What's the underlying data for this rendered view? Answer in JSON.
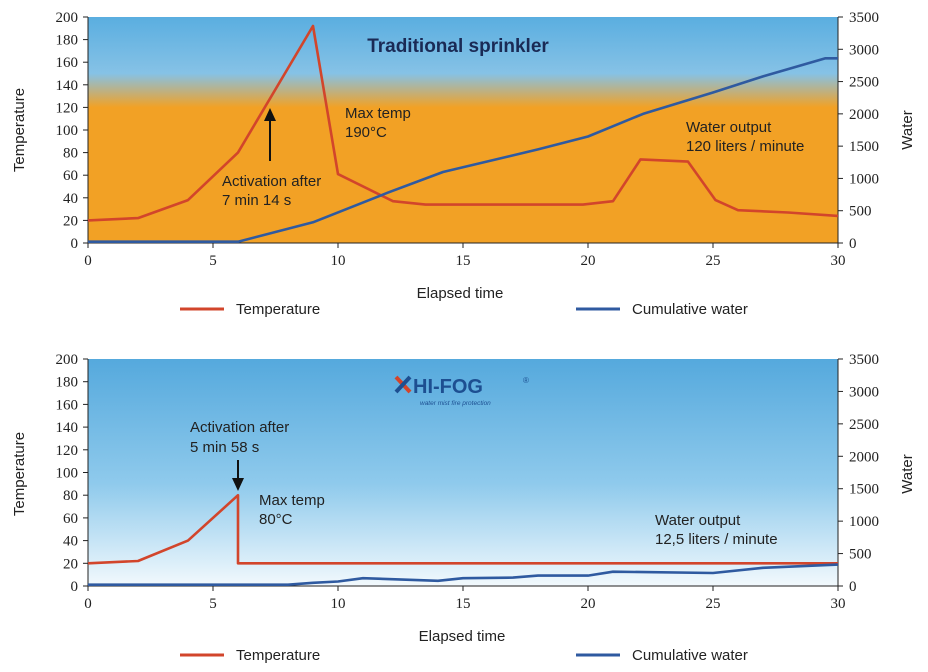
{
  "colors": {
    "temperature_line": "#d2452b",
    "water_line": "#2f5aa0",
    "sky_top": "#5aaee0",
    "sky_mid": "#7cc0e8",
    "orange": "#f2a125",
    "pale": "#eef7fc",
    "logo_red": "#d2452b",
    "logo_blue": "#1d4f91"
  },
  "chart_data": [
    {
      "type": "line",
      "title": "Traditional sprinkler",
      "xlabel": "Elapsed time",
      "ylabel": "Temperature",
      "y2label": "Water",
      "xlim": [
        0,
        30
      ],
      "ylim": [
        0,
        200
      ],
      "y2lim": [
        0,
        3500
      ],
      "x_ticks": [
        "0",
        "5",
        "10",
        "15",
        "20",
        "25",
        "30"
      ],
      "y_ticks": [
        "0",
        "20",
        "40",
        "60",
        "80",
        "100",
        "120",
        "140",
        "160",
        "180",
        "200"
      ],
      "y2_ticks": [
        "0",
        "500",
        "1000",
        "1500",
        "2000",
        "2500",
        "3000",
        "3500"
      ],
      "series": [
        {
          "name": "Temperature",
          "axis": "left",
          "x": [
            0,
            2,
            4,
            6,
            9,
            10,
            12.2,
            13.5,
            19.8,
            21,
            22.1,
            24,
            25.1,
            26,
            28,
            30
          ],
          "values": [
            20,
            22,
            38,
            80,
            192,
            61,
            37,
            34,
            34,
            37,
            74,
            72,
            38,
            29,
            27,
            24
          ]
        },
        {
          "name": "Cumulative water",
          "axis": "right",
          "x": [
            0,
            6,
            9,
            12,
            14.2,
            18,
            20,
            22.2,
            25,
            27,
            29.5,
            30
          ],
          "values": [
            20,
            20,
            320,
            780,
            1100,
            1450,
            1650,
            2000,
            2330,
            2580,
            2860,
            2860
          ]
        }
      ],
      "annotations": [
        {
          "text": [
            "Max temp",
            "190°C"
          ]
        },
        {
          "text": [
            "Activation after",
            "7 min 14 s"
          ]
        },
        {
          "text": [
            "Water output",
            "120 liters / minute"
          ]
        }
      ]
    },
    {
      "type": "line",
      "title": "",
      "logo_text": "HI-FOG",
      "logo_tagline": "water mist fire protection",
      "xlabel": "Elapsed time",
      "ylabel": "Temperature",
      "y2label": "Water",
      "xlim": [
        0,
        30
      ],
      "ylim": [
        0,
        200
      ],
      "y2lim": [
        0,
        3500
      ],
      "x_ticks": [
        "0",
        "5",
        "10",
        "15",
        "20",
        "25",
        "30"
      ],
      "y_ticks": [
        "0",
        "20",
        "40",
        "60",
        "80",
        "100",
        "120",
        "140",
        "160",
        "180",
        "200"
      ],
      "y2_ticks": [
        "0",
        "500",
        "1000",
        "1500",
        "2000",
        "2500",
        "3000",
        "3500"
      ],
      "series": [
        {
          "name": "Temperature",
          "axis": "left",
          "x": [
            0,
            2,
            4,
            6,
            6,
            30
          ],
          "values": [
            20,
            22,
            40,
            80,
            20,
            20
          ]
        },
        {
          "name": "Cumulative water",
          "axis": "right",
          "x": [
            0,
            8,
            9,
            10,
            11,
            14,
            15,
            17,
            18,
            20,
            21,
            25,
            27,
            30
          ],
          "values": [
            20,
            20,
            50,
            70,
            120,
            80,
            120,
            130,
            160,
            160,
            220,
            200,
            280,
            330
          ]
        }
      ],
      "annotations": [
        {
          "text": [
            "Activation after",
            "5 min 58 s"
          ]
        },
        {
          "text": [
            "Max temp",
            "80°C"
          ]
        },
        {
          "text": [
            "Water output",
            "12,5 liters / minute"
          ]
        }
      ]
    }
  ]
}
